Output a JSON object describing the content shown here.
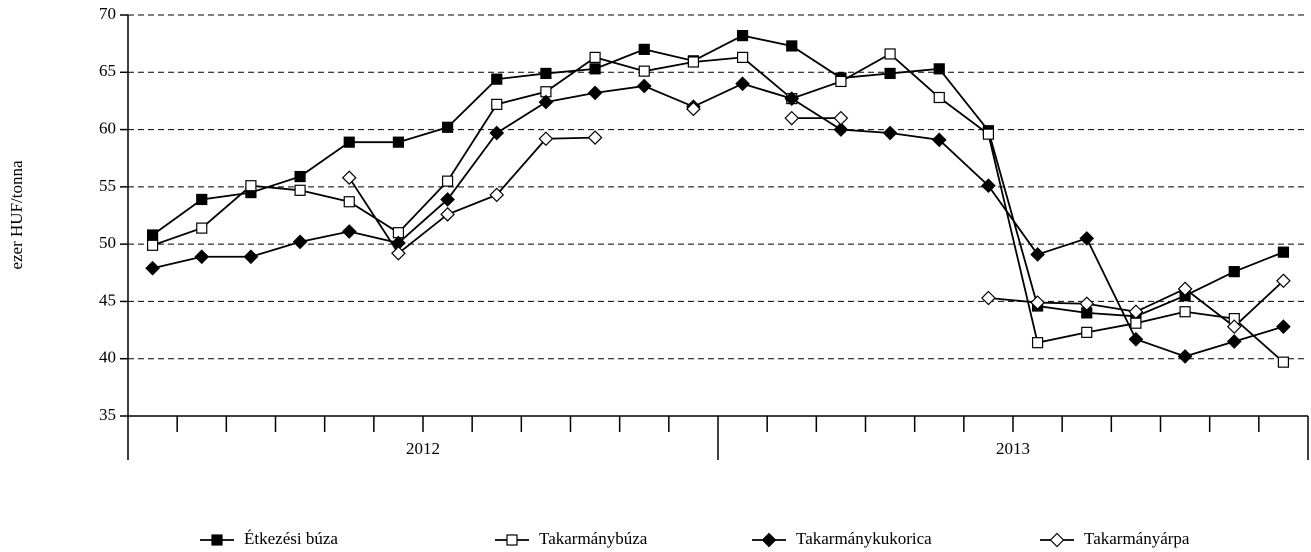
{
  "chart_data": {
    "type": "line",
    "y_label": "ezer HUF/tonna",
    "categories": [
      null,
      null,
      null,
      null,
      null,
      null,
      null,
      null,
      null,
      null,
      null,
      null,
      null,
      null,
      null,
      null,
      null,
      null,
      null,
      null,
      null,
      null,
      null,
      null
    ],
    "x_groups": [
      "2012",
      "2013"
    ],
    "ylim": [
      35,
      70
    ],
    "yticks": [
      35,
      40,
      45,
      50,
      55,
      60,
      65,
      70
    ],
    "grid": true,
    "legend": "bottom",
    "series": [
      {
        "name": "Étkezési búza",
        "color": "#000000",
        "marker": "square-filled",
        "values": [
          50.8,
          53.9,
          54.5,
          55.9,
          58.9,
          58.9,
          60.2,
          64.4,
          64.9,
          65.3,
          67.0,
          66.0,
          68.2,
          67.3,
          64.5,
          64.9,
          65.3,
          59.9,
          44.6,
          44.0,
          43.7,
          45.5,
          47.6,
          49.3
        ]
      },
      {
        "name": "Takarmánybúza",
        "color": "#000000",
        "marker": "square-open",
        "values": [
          49.9,
          51.4,
          55.1,
          54.7,
          53.7,
          51.0,
          55.5,
          62.2,
          63.3,
          66.3,
          65.1,
          65.9,
          66.3,
          62.7,
          64.2,
          66.6,
          62.8,
          59.6,
          41.4,
          42.3,
          43.1,
          44.1,
          43.5,
          39.7
        ]
      },
      {
        "name": "Takarmánykukorica",
        "color": "#000000",
        "marker": "diamond-filled",
        "values": [
          47.9,
          48.9,
          48.9,
          50.2,
          51.1,
          50.1,
          53.9,
          59.7,
          62.4,
          63.2,
          63.8,
          62.0,
          64.0,
          62.7,
          60.0,
          59.7,
          59.1,
          55.1,
          49.1,
          50.5,
          41.7,
          40.2,
          41.5,
          42.8
        ]
      },
      {
        "name": "Takarmányárpa",
        "color": "#000000",
        "marker": "diamond-open",
        "values": [
          null,
          null,
          null,
          null,
          55.8,
          49.2,
          52.6,
          54.3,
          59.2,
          59.3,
          null,
          61.8,
          null,
          61.0,
          61.0,
          null,
          null,
          45.3,
          44.9,
          44.8,
          44.1,
          46.1,
          42.8,
          46.8
        ]
      }
    ]
  }
}
